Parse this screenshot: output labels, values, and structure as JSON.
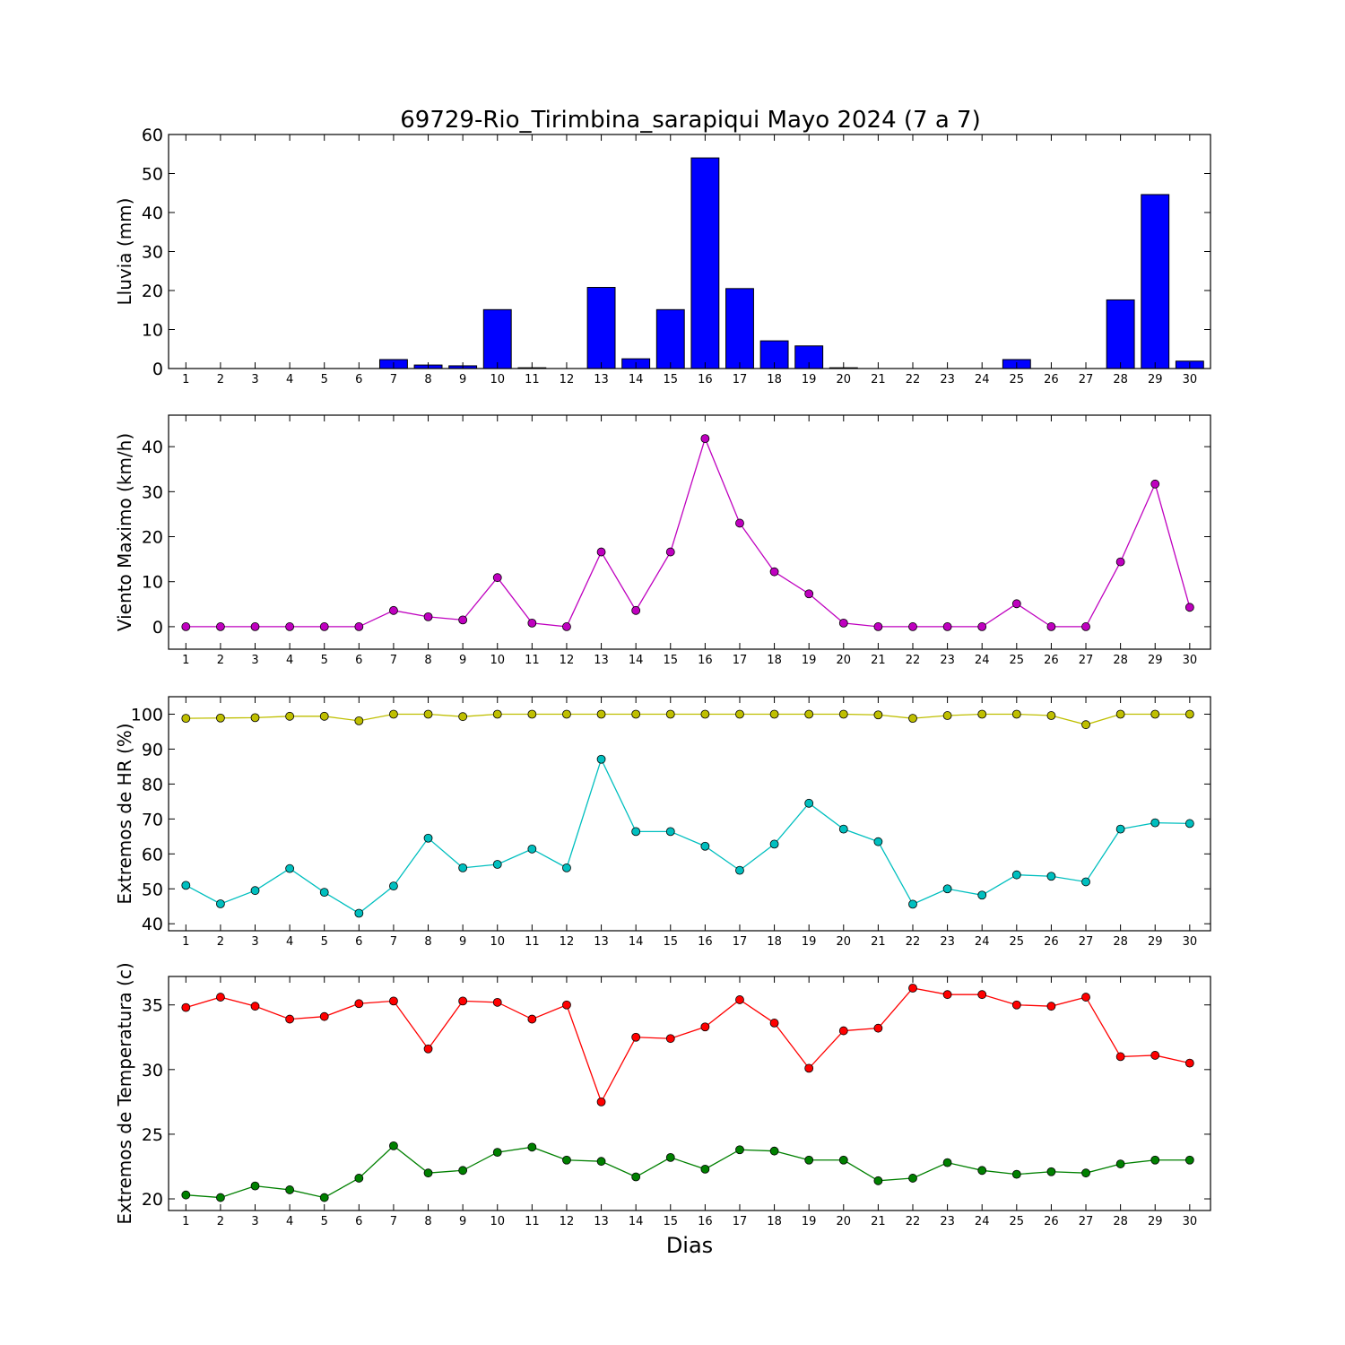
{
  "chart_data": {
    "title": "69729-Rio_Tirimbina_sarapiqui Mayo 2024  (7 a 7)",
    "xlabel": "Dias",
    "days": [
      1,
      2,
      3,
      4,
      5,
      6,
      7,
      8,
      9,
      10,
      11,
      12,
      13,
      14,
      15,
      16,
      17,
      18,
      19,
      20,
      21,
      22,
      23,
      24,
      25,
      26,
      27,
      28,
      29,
      30
    ],
    "panels": [
      {
        "type": "bar",
        "ylabel": "Lluvia (mm)",
        "ylim": [
          0,
          60
        ],
        "yticks": [
          0,
          10,
          20,
          30,
          40,
          50,
          60
        ],
        "series": [
          {
            "color": "#0000ff",
            "values": [
              0,
              0,
              0,
              0,
              0,
              0,
              2.3,
              0.9,
              0.7,
              15.1,
              0.2,
              0,
              20.8,
              2.5,
              15.1,
              54.0,
              20.5,
              7.1,
              5.8,
              0.2,
              0,
              0,
              0,
              0,
              2.3,
              0,
              0,
              17.6,
              44.6,
              1.9
            ]
          }
        ]
      },
      {
        "type": "line",
        "ylabel": "Viento Maximo (km/h)",
        "ylim": [
          -5,
          47
        ],
        "yticks": [
          0,
          10,
          20,
          30,
          40
        ],
        "series": [
          {
            "color": "#bf00bf",
            "values": [
              0,
              0,
              0,
              0,
              0,
              0,
              3.6,
              2.2,
              1.5,
              10.9,
              0.8,
              0,
              16.6,
              3.6,
              16.6,
              41.8,
              23.0,
              12.2,
              7.3,
              0.8,
              0,
              0,
              0,
              0,
              5.1,
              0,
              0,
              14.4,
              31.7,
              4.3
            ]
          }
        ]
      },
      {
        "type": "line",
        "ylabel": "Extremos de HR (%)",
        "ylim": [
          38,
          105
        ],
        "yticks": [
          40,
          50,
          60,
          70,
          80,
          90,
          100
        ],
        "series": [
          {
            "color": "#bfbf00",
            "values": [
              98.8,
              98.9,
              99.0,
              99.4,
              99.4,
              98.1,
              100,
              100,
              99.3,
              100,
              100,
              100,
              100,
              100,
              100,
              100,
              100,
              100,
              100,
              100,
              99.8,
              98.8,
              99.6,
              100,
              100,
              99.6,
              97.0,
              100,
              100,
              100
            ]
          },
          {
            "color": "#00bfbf",
            "values": [
              51.0,
              45.7,
              49.5,
              55.8,
              49.0,
              43.0,
              50.8,
              64.5,
              56.0,
              57.0,
              61.4,
              56.0,
              87.1,
              66.4,
              66.4,
              62.2,
              55.3,
              62.8,
              74.5,
              67.1,
              63.5,
              45.6,
              50.0,
              48.2,
              54.0,
              53.6,
              52.0,
              67.1,
              68.9,
              68.7
            ]
          }
        ]
      },
      {
        "type": "line",
        "ylabel": "Extremos de Temperatura (c)",
        "ylim": [
          19.1,
          37.2
        ],
        "yticks": [
          20,
          25,
          30,
          35
        ],
        "series": [
          {
            "color": "#ff0000",
            "values": [
              34.8,
              35.6,
              34.9,
              33.9,
              34.1,
              35.1,
              35.3,
              31.6,
              35.3,
              35.2,
              33.9,
              35.0,
              27.5,
              32.5,
              32.4,
              33.3,
              35.4,
              33.6,
              30.1,
              33.0,
              33.2,
              36.3,
              35.8,
              35.8,
              35.0,
              34.9,
              35.6,
              31.0,
              31.1,
              30.5
            ]
          },
          {
            "color": "#008000",
            "values": [
              20.3,
              20.1,
              21.0,
              20.7,
              20.1,
              21.6,
              24.1,
              22.0,
              22.2,
              23.6,
              24.0,
              23.0,
              22.9,
              21.7,
              23.2,
              22.3,
              23.8,
              23.7,
              23.0,
              23.0,
              21.4,
              21.6,
              22.8,
              22.2,
              21.9,
              22.1,
              22.0,
              22.7,
              23.0,
              23.0
            ]
          }
        ]
      }
    ]
  }
}
